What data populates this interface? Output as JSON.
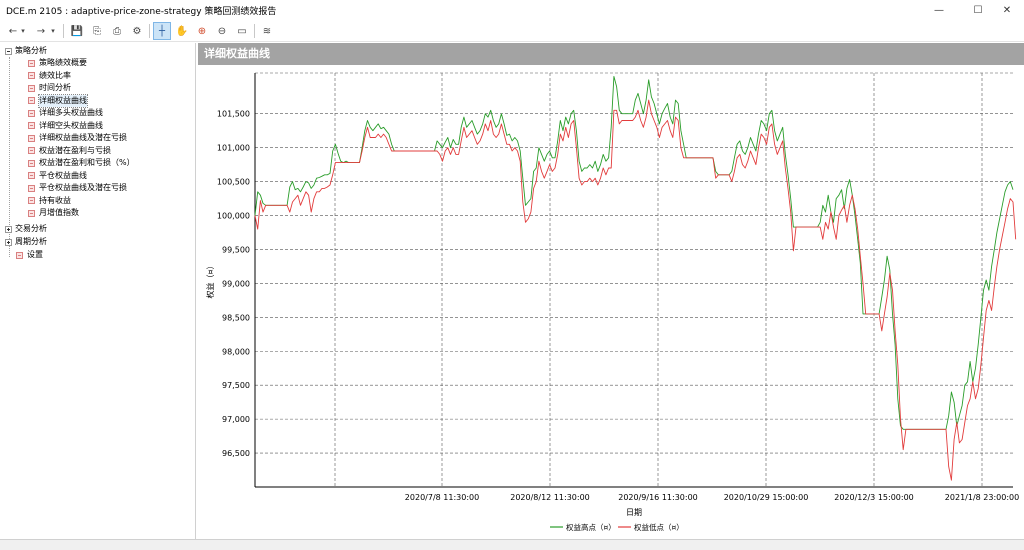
{
  "window": {
    "title": "DCE.m 2105 : adaptive-price-zone-strategy 策略回测绩效报告",
    "minimize": "—",
    "maximize": "☐",
    "close": "✕"
  },
  "toolbar": {
    "back": "←",
    "back_dropdown": "▾",
    "forward": "→",
    "forward_dropdown": "▾",
    "save": "💾",
    "export": "⎘",
    "print": "⎙",
    "settings": "⚙",
    "crosshair": "┼",
    "pan": "✋",
    "zoom_in": "⊕",
    "zoom_out": "⊖",
    "fit": "▭",
    "chart_style": "≋"
  },
  "tree": {
    "strategy_analysis": {
      "label": "策略分析",
      "children": [
        "策略绩效概要",
        "绩效比率",
        "时间分析",
        "详细权益曲线",
        "详细多头权益曲线",
        "详细空头权益曲线",
        "详细权益曲线及潜在亏损",
        "权益潜在盈利与亏损",
        "权益潜在盈利和亏损（%）",
        "平仓权益曲线",
        "平仓权益曲线及潜在亏损",
        "持有收益",
        "月增值指数"
      ]
    },
    "trade_analysis": "交易分析",
    "period_analysis": "周期分析",
    "settings": "设置"
  },
  "panel": {
    "title": "详细权益曲线"
  },
  "chart_data": {
    "type": "line",
    "title": "",
    "xlabel": "日期",
    "ylabel": "权益（¤）",
    "ylim": [
      96000,
      102100
    ],
    "y_ticks": [
      96500,
      97000,
      97500,
      98000,
      98500,
      99000,
      99500,
      100000,
      100500,
      101000,
      101500
    ],
    "y_tick_labels": [
      "96,500",
      "97,000",
      "97,500",
      "98,000",
      "98,500",
      "99,000",
      "99,500",
      "100,000",
      "100,500",
      "101,000",
      "101,500"
    ],
    "x_tick_labels": [
      "2020/7/8 11:30:00",
      "2020/8/12 11:30:00",
      "2020/9/16 11:30:00",
      "2020/10/29 15:00:00",
      "2020/12/3 15:00:00",
      "2021/1/8 23:00:00"
    ],
    "grid": true,
    "legend_position": "bottom",
    "series": [
      {
        "name": "权益高点（¤）",
        "color": "#2a9d2a",
        "values": [
          100000,
          100350,
          100300,
          100180,
          100150,
          100150,
          100150,
          100150,
          100150,
          100150,
          100150,
          100150,
          100150,
          100420,
          100500,
          100380,
          100400,
          100350,
          100420,
          100500,
          100480,
          100400,
          100450,
          100550,
          100560,
          100580,
          100600,
          100600,
          100620,
          100950,
          101050,
          100920,
          100800,
          100780,
          100800,
          100780,
          100780,
          100780,
          100780,
          100780,
          101000,
          101250,
          101400,
          101300,
          101250,
          101300,
          101350,
          101280,
          101300,
          101250,
          101200,
          101050,
          100950,
          100950,
          100950,
          100950,
          100950,
          100950,
          100950,
          100950,
          100950,
          100950,
          100950,
          100950,
          100950,
          100950,
          100950,
          100950,
          101100,
          101050,
          101000,
          101080,
          101150,
          101000,
          101120,
          101050,
          101050,
          101300,
          101450,
          101300,
          101350,
          101400,
          101300,
          101200,
          101250,
          101350,
          101500,
          101450,
          101550,
          101400,
          101300,
          101350,
          101500,
          101350,
          101180,
          101200,
          101100,
          101150,
          101100,
          100950,
          100550,
          100150,
          100200,
          100250,
          100650,
          100700,
          101000,
          100900,
          100800,
          100900,
          100950,
          100850,
          100850,
          101100,
          101400,
          101250,
          101450,
          101350,
          101500,
          101550,
          101250,
          100800,
          100650,
          100700,
          100700,
          100750,
          100700,
          100800,
          100650,
          100750,
          100900,
          100800,
          100850,
          101300,
          102050,
          101900,
          101550,
          101500,
          101500,
          101500,
          101500,
          101500,
          101700,
          101800,
          101650,
          101500,
          101700,
          102000,
          101750,
          101650,
          101500,
          101350,
          101500,
          101580,
          101650,
          101450,
          101350,
          101700,
          101650,
          101250,
          101050,
          100850,
          100850,
          100850,
          100850,
          100850,
          100850,
          100850,
          100850,
          100850,
          100850,
          100850,
          100650,
          100600,
          100600,
          100600,
          100600,
          100600,
          100650,
          100850,
          101050,
          101100,
          100950,
          100900,
          101000,
          101150,
          101050,
          100950,
          101200,
          101400,
          101350,
          101250,
          101500,
          101550,
          101250,
          101100,
          101200,
          101300,
          100900,
          100600,
          100250,
          99830,
          99830,
          99830,
          99830,
          99830,
          99830,
          99830,
          99830,
          99830,
          99830,
          99900,
          100150,
          100050,
          100300,
          100050,
          99900,
          100250,
          100300,
          100380,
          100100,
          100400,
          100530,
          100300,
          100000,
          99650,
          99300,
          98550,
          98550,
          98550,
          98550,
          98550,
          98550,
          98550,
          98800,
          99050,
          99400,
          99200,
          98550,
          98100,
          97300,
          96900,
          96850,
          96850,
          96850,
          96850,
          96850,
          96850,
          96850,
          96850,
          96850,
          96850,
          96850,
          96850,
          96850,
          96850,
          96850,
          96850,
          96850,
          97050,
          97400,
          97250,
          96900,
          97050,
          97200,
          97500,
          97550,
          97850,
          97550,
          97750,
          98100,
          98500,
          98900,
          99050,
          98900,
          99250,
          99500,
          99750,
          99950,
          100150,
          100350,
          100450,
          100500,
          100380
        ]
      },
      {
        "name": "权益低点（¤）",
        "color": "#e23c3c",
        "values": [
          100000,
          99800,
          100220,
          100050,
          100150,
          100150,
          100150,
          100150,
          100150,
          100150,
          100150,
          100150,
          100150,
          100050,
          100200,
          100250,
          100300,
          100150,
          100250,
          100350,
          100300,
          100050,
          100250,
          100350,
          100350,
          100400,
          100400,
          100420,
          100450,
          100600,
          100780,
          100780,
          100780,
          100780,
          100780,
          100780,
          100780,
          100780,
          100780,
          100780,
          100950,
          101150,
          101300,
          101150,
          101150,
          101150,
          101200,
          101150,
          101200,
          101150,
          101050,
          100950,
          100950,
          100950,
          100950,
          100950,
          100950,
          100950,
          100950,
          100950,
          100950,
          100950,
          100950,
          100950,
          100950,
          100950,
          100950,
          100950,
          100950,
          100900,
          100800,
          100950,
          101000,
          100900,
          101000,
          100900,
          100900,
          101100,
          101300,
          101150,
          101200,
          101250,
          101150,
          101050,
          101100,
          101200,
          101350,
          101250,
          101400,
          101200,
          101150,
          101200,
          101350,
          101200,
          101050,
          101050,
          100950,
          101000,
          100950,
          100800,
          100200,
          99900,
          99950,
          100050,
          100400,
          100500,
          100800,
          100650,
          100550,
          100650,
          100750,
          100650,
          100700,
          100900,
          101200,
          101100,
          101300,
          101150,
          101350,
          101400,
          101000,
          100550,
          100450,
          100500,
          100500,
          100550,
          100500,
          100550,
          100450,
          100550,
          100700,
          100600,
          100700,
          100700,
          101550,
          101550,
          101350,
          101400,
          101400,
          101400,
          101400,
          101400,
          101450,
          101550,
          101400,
          101300,
          101450,
          101700,
          101500,
          101400,
          101300,
          101150,
          101300,
          101350,
          101400,
          101250,
          101150,
          101450,
          101400,
          101000,
          100850,
          100850,
          100850,
          100850,
          100850,
          100850,
          100850,
          100850,
          100850,
          100850,
          100850,
          100850,
          100550,
          100600,
          100600,
          100600,
          100600,
          100600,
          100500,
          100650,
          100850,
          100900,
          100750,
          100700,
          100800,
          100950,
          100850,
          100750,
          101000,
          101200,
          101150,
          101050,
          101300,
          101350,
          101050,
          100900,
          101000,
          101100,
          100700,
          100400,
          100050,
          99480,
          99830,
          99830,
          99830,
          99830,
          99830,
          99830,
          99830,
          99830,
          99830,
          99830,
          99650,
          99900,
          99800,
          100050,
          99830,
          99650,
          100000,
          100080,
          100150,
          99900,
          100150,
          100300,
          100100,
          99800,
          99400,
          99000,
          98550,
          98550,
          98550,
          98550,
          98550,
          98550,
          98300,
          98550,
          98800,
          99150,
          98900,
          98300,
          97800,
          97000,
          96550,
          96850,
          96850,
          96850,
          96850,
          96850,
          96850,
          96850,
          96850,
          96850,
          96850,
          96850,
          96850,
          96850,
          96850,
          96850,
          96850,
          96300,
          96100,
          96700,
          96950,
          96650,
          96700,
          96950,
          97200,
          97300,
          97550,
          97300,
          97450,
          97800,
          98200,
          98600,
          98750,
          98600,
          98950,
          99250,
          99500,
          99700,
          99900,
          100100,
          100250,
          100200,
          99650
        ]
      }
    ]
  },
  "statusbar": {
    "text": ""
  }
}
